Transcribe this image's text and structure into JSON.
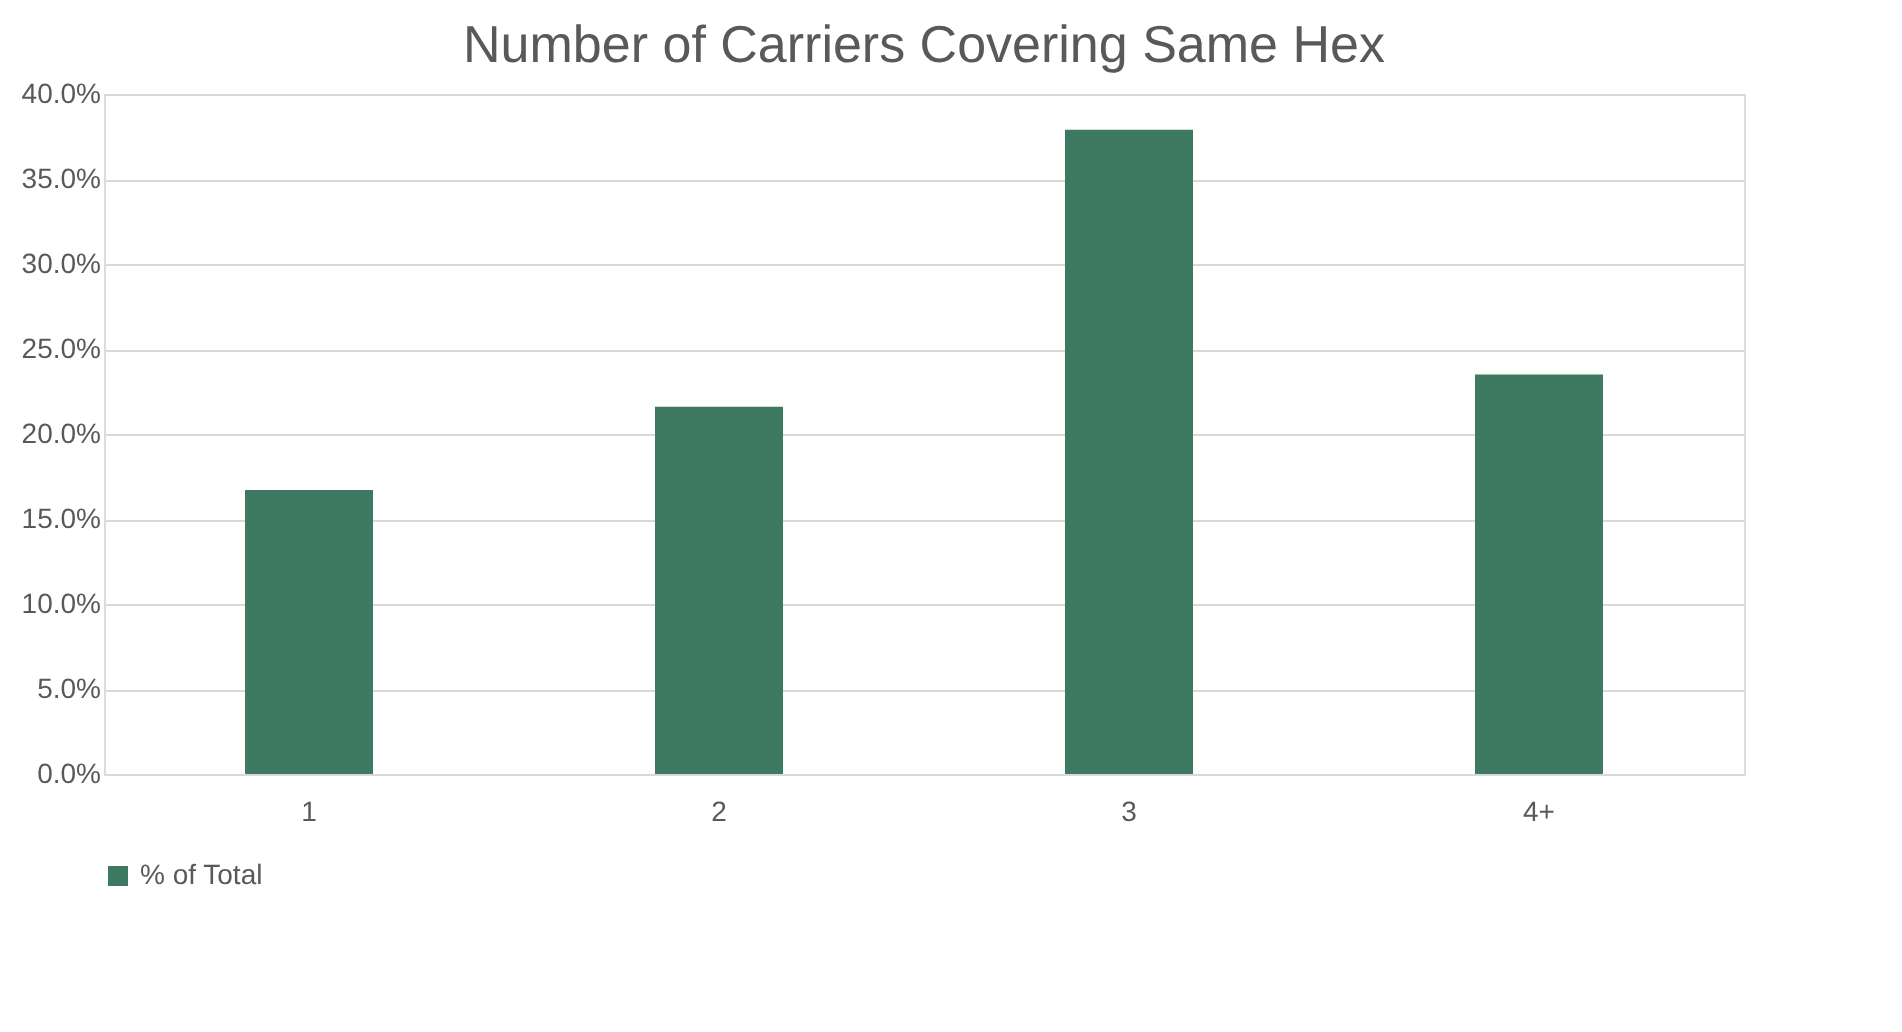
{
  "chart_data": {
    "type": "bar",
    "title": "Number of Carriers Covering Same Hex",
    "categories": [
      "1",
      "2",
      "3",
      "4+"
    ],
    "series": [
      {
        "name": "% of Total",
        "color": "#3e7a62",
        "values": [
          16.7,
          21.6,
          37.9,
          23.5
        ]
      }
    ],
    "ylim": [
      0,
      40
    ],
    "yticks": [
      {
        "value": 0,
        "label": "0.0%"
      },
      {
        "value": 5,
        "label": "5.0%"
      },
      {
        "value": 10,
        "label": "10.0%"
      },
      {
        "value": 15,
        "label": "15.0%"
      },
      {
        "value": 20,
        "label": "20.0%"
      },
      {
        "value": 25,
        "label": "25.0%"
      },
      {
        "value": 30,
        "label": "30.0%"
      },
      {
        "value": 35,
        "label": "35.0%"
      },
      {
        "value": 40,
        "label": "40.0%"
      }
    ],
    "grid": "y",
    "legend": "bottom"
  }
}
